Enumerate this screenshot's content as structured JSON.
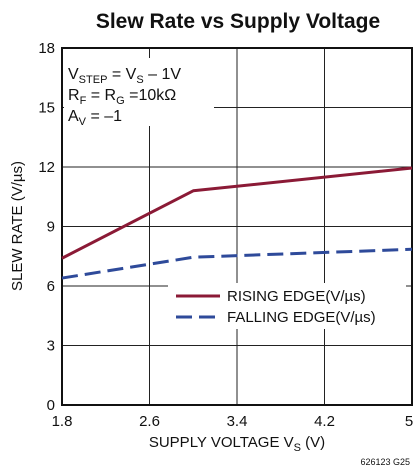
{
  "chart_data": {
    "type": "line",
    "title": "Slew Rate vs Supply Voltage",
    "xlabel": {
      "main": "SUPPLY VOLTAGE V",
      "sub": "S",
      "unit": " (V)"
    },
    "ylabel": "SLEW RATE (V/µs)",
    "xlim": [
      1.8,
      5
    ],
    "ylim": [
      0,
      18
    ],
    "x_ticks": [
      1.8,
      2.6,
      3.4,
      4.2,
      5
    ],
    "x_tick_labels": [
      "1.8",
      "2.6",
      "3.4",
      "4.2",
      "5"
    ],
    "y_ticks": [
      0,
      3,
      6,
      9,
      12,
      15,
      18
    ],
    "y_tick_labels": [
      "0",
      "3",
      "6",
      "9",
      "12",
      "15",
      "18"
    ],
    "grid": true,
    "legend_position": "center-right",
    "series": [
      {
        "name": "RISING EDGE(V/µs)",
        "color": "#8b1a36",
        "dash": "solid",
        "x": [
          1.8,
          3.0,
          5.0
        ],
        "y": [
          7.4,
          10.8,
          11.95
        ]
      },
      {
        "name": "FALLING EDGE(V/µs)",
        "color": "#2e4a9a",
        "dash": "dashed",
        "x": [
          1.8,
          3.0,
          5.0
        ],
        "y": [
          6.4,
          7.45,
          7.85
        ]
      }
    ],
    "annotations": [
      {
        "main": "V",
        "sub": "STEP",
        "rest": " = V",
        "sub2": "S",
        "rest2": " – 1V"
      },
      {
        "main": "R",
        "sub": "F",
        "rest": " = R",
        "sub2": "G",
        "rest2": " =10kΩ"
      },
      {
        "main": "A",
        "sub": "V",
        "rest": " = –1",
        "sub2": "",
        "rest2": ""
      }
    ],
    "figure_code": "626123 G25"
  }
}
